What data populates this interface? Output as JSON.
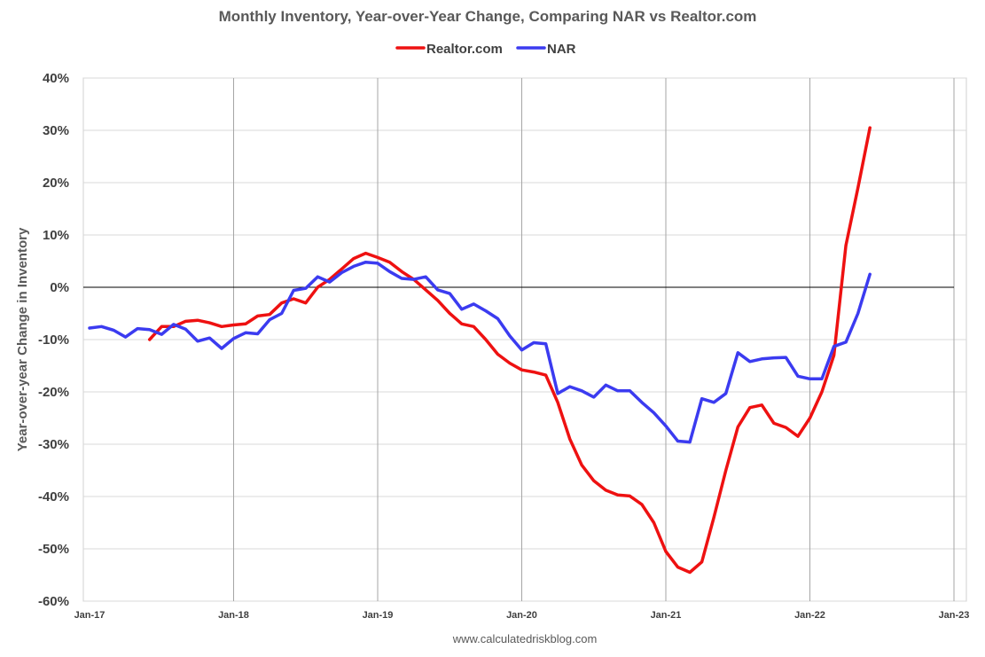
{
  "chart_data": {
    "type": "line",
    "title": "Monthly Inventory, Year-over-Year Change, Comparing NAR vs Realtor.com",
    "ylabel": "Year-over-year Change in Inventory",
    "xlabel": "",
    "source": "www.calculatedriskblog.com",
    "ylim": [
      -60,
      40
    ],
    "y_ticks": [
      "40%",
      "30%",
      "20%",
      "10%",
      "0%",
      "-10%",
      "-20%",
      "-30%",
      "-40%",
      "-50%",
      "-60%"
    ],
    "y_tick_values": [
      40,
      30,
      20,
      10,
      0,
      -10,
      -20,
      -30,
      -40,
      -50,
      -60
    ],
    "x_ticks": [
      "Jan-17",
      "Jan-18",
      "Jan-19",
      "Jan-20",
      "Jan-21",
      "Jan-22",
      "Jan-23"
    ],
    "x_tick_values": [
      "2017-01",
      "2018-01",
      "2019-01",
      "2020-01",
      "2021-01",
      "2022-01",
      "2023-01"
    ],
    "xlim": [
      "2016-12",
      "2023-01"
    ],
    "grid": true,
    "legend_position": "top-center",
    "series": [
      {
        "name": "Realtor.com",
        "color": "#ee1111",
        "start": "2017-06",
        "values": [
          -10,
          -7.5,
          -7.5,
          -6.5,
          -6.3,
          -6.8,
          -7.5,
          -7.2,
          -7.0,
          -5.5,
          -5.2,
          -3.0,
          -2.2,
          -3.0,
          0,
          1.5,
          3.5,
          5.5,
          6.5,
          5.7,
          4.8,
          3.0,
          1.5,
          -0.5,
          -2.5,
          -5.0,
          -7.0,
          -7.5,
          -10.0,
          -12.8,
          -14.5,
          -15.8,
          -16.2,
          -16.8,
          -22.0,
          -29.0,
          -34.0,
          -37.0,
          -38.8,
          -39.7,
          -39.9,
          -41.5,
          -45.0,
          -50.5,
          -53.5,
          -54.5,
          -52.5,
          -44.0,
          -35.0,
          -26.7,
          -23.0,
          -22.5,
          -26.0,
          -26.8,
          -28.5,
          -25.0,
          -20.0,
          -13.0,
          8.0,
          19.0,
          30.5
        ]
      },
      {
        "name": "NAR",
        "color": "#3b3bf0",
        "start": "2017-01",
        "values": [
          -7.8,
          -7.5,
          -8.2,
          -9.5,
          -7.9,
          -8.1,
          -9.0,
          -7.1,
          -8.0,
          -10.3,
          -9.7,
          -11.7,
          -9.8,
          -8.7,
          -8.9,
          -6.2,
          -5.0,
          -0.6,
          -0.2,
          2.0,
          1.0,
          2.8,
          4.0,
          4.8,
          4.6,
          3.0,
          1.7,
          1.5,
          2.0,
          -0.5,
          -1.2,
          -4.2,
          -3.2,
          -4.5,
          -6.0,
          -9.3,
          -12.0,
          -10.6,
          -10.8,
          -20.3,
          -19.0,
          -19.8,
          -21.0,
          -18.7,
          -19.8,
          -19.8,
          -22.0,
          -24.0,
          -26.5,
          -29.4,
          -29.6,
          -21.3,
          -22.0,
          -20.3,
          -12.5,
          -14.2,
          -13.7,
          -13.5,
          -13.4,
          -17.0,
          -17.5,
          -17.5,
          -11.3,
          -10.5,
          -5.0,
          2.5
        ]
      }
    ]
  }
}
